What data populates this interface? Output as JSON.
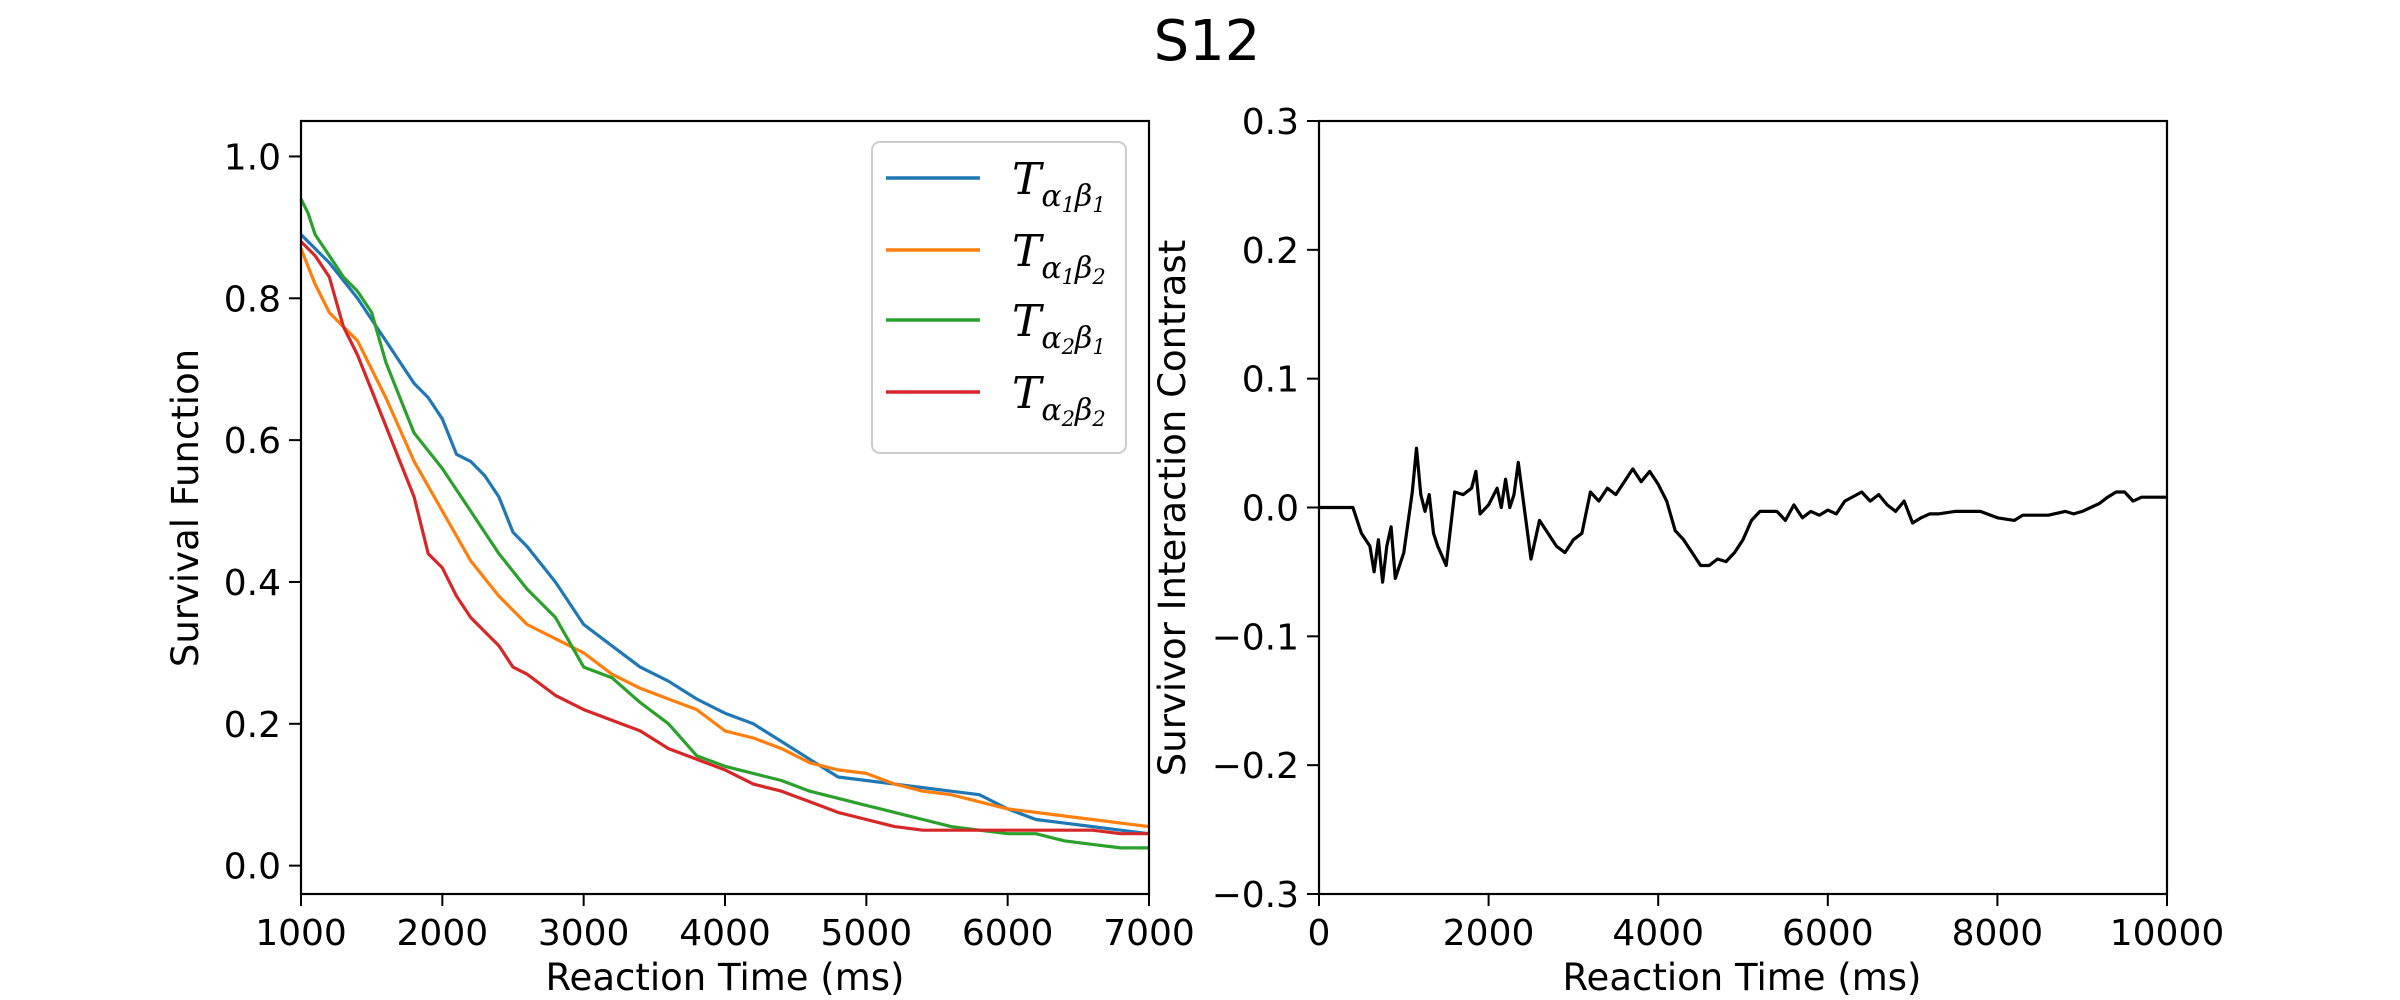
{
  "title": "S12",
  "colors": {
    "blue": "#1f77b4",
    "orange": "#ff7f0e",
    "green": "#2ca02c",
    "red": "#d62728",
    "black": "#000000"
  },
  "chart_data": [
    {
      "type": "line",
      "title": "",
      "xlabel": "Reaction Time (ms)",
      "ylabel": "Survival Function",
      "xlim": [
        1000,
        7000
      ],
      "ylim": [
        -0.04,
        1.05
      ],
      "xticks": [
        1000,
        2000,
        3000,
        4000,
        5000,
        6000,
        7000
      ],
      "xtick_labels": [
        "1000",
        "2000",
        "3000",
        "4000",
        "5000",
        "6000",
        "7000"
      ],
      "yticks": [
        0.0,
        0.2,
        0.4,
        0.6,
        0.8,
        1.0
      ],
      "ytick_labels": [
        "0.0",
        "0.2",
        "0.4",
        "0.6",
        "0.8",
        "1.0"
      ],
      "grid": false,
      "legend_position": "top-right",
      "series": [
        {
          "name": "T_a1b1",
          "label_T": "T",
          "label_sub": [
            "α",
            "1",
            "β",
            "1"
          ],
          "color": "#1f77b4",
          "x": [
            1000,
            1200,
            1400,
            1600,
            1800,
            1900,
            2000,
            2100,
            2200,
            2300,
            2400,
            2500,
            2600,
            2800,
            3000,
            3200,
            3400,
            3600,
            3800,
            4000,
            4200,
            4400,
            4600,
            4800,
            5000,
            5200,
            5400,
            5600,
            5800,
            6000,
            6200,
            6400,
            6600,
            6800,
            7000
          ],
          "y": [
            0.89,
            0.85,
            0.8,
            0.74,
            0.68,
            0.66,
            0.63,
            0.58,
            0.57,
            0.55,
            0.52,
            0.47,
            0.45,
            0.4,
            0.34,
            0.31,
            0.28,
            0.26,
            0.235,
            0.215,
            0.2,
            0.175,
            0.15,
            0.125,
            0.12,
            0.115,
            0.11,
            0.105,
            0.1,
            0.08,
            0.065,
            0.06,
            0.055,
            0.05,
            0.045
          ]
        },
        {
          "name": "T_a1b2",
          "label_T": "T",
          "label_sub": [
            "α",
            "1",
            "β",
            "2"
          ],
          "color": "#ff7f0e",
          "x": [
            1000,
            1100,
            1200,
            1300,
            1400,
            1600,
            1800,
            2000,
            2200,
            2400,
            2600,
            2800,
            3000,
            3200,
            3400,
            3600,
            3800,
            4000,
            4200,
            4400,
            4600,
            4800,
            5000,
            5200,
            5400,
            5600,
            5800,
            6000,
            6200,
            6400,
            6600,
            6800,
            7000
          ],
          "y": [
            0.87,
            0.82,
            0.78,
            0.76,
            0.74,
            0.66,
            0.57,
            0.5,
            0.43,
            0.38,
            0.34,
            0.32,
            0.3,
            0.27,
            0.25,
            0.235,
            0.22,
            0.19,
            0.18,
            0.165,
            0.145,
            0.135,
            0.13,
            0.115,
            0.105,
            0.1,
            0.09,
            0.08,
            0.075,
            0.07,
            0.065,
            0.06,
            0.055
          ]
        },
        {
          "name": "T_a2b1",
          "label_T": "T",
          "label_sub": [
            "α",
            "2",
            "β",
            "1"
          ],
          "color": "#2ca02c",
          "x": [
            1000,
            1050,
            1100,
            1200,
            1300,
            1400,
            1500,
            1600,
            1700,
            1800,
            2000,
            2200,
            2400,
            2600,
            2800,
            3000,
            3200,
            3400,
            3600,
            3800,
            4000,
            4200,
            4400,
            4600,
            4800,
            5000,
            5200,
            5400,
            5600,
            5800,
            6000,
            6200,
            6400,
            6600,
            6800,
            7000
          ],
          "y": [
            0.94,
            0.92,
            0.89,
            0.86,
            0.83,
            0.81,
            0.78,
            0.71,
            0.66,
            0.61,
            0.56,
            0.5,
            0.44,
            0.39,
            0.35,
            0.28,
            0.265,
            0.23,
            0.2,
            0.155,
            0.14,
            0.13,
            0.12,
            0.105,
            0.095,
            0.085,
            0.075,
            0.065,
            0.055,
            0.05,
            0.045,
            0.045,
            0.035,
            0.03,
            0.025,
            0.025
          ]
        },
        {
          "name": "T_a2b2",
          "label_T": "T",
          "label_sub": [
            "α",
            "2",
            "β",
            "2"
          ],
          "color": "#d62728",
          "x": [
            1000,
            1100,
            1200,
            1300,
            1400,
            1500,
            1600,
            1700,
            1800,
            1900,
            2000,
            2100,
            2200,
            2300,
            2400,
            2500,
            2600,
            2800,
            3000,
            3200,
            3400,
            3600,
            3800,
            4000,
            4200,
            4400,
            4600,
            4800,
            5000,
            5200,
            5400,
            5600,
            5800,
            6000,
            6200,
            6400,
            6600,
            6800,
            7000
          ],
          "y": [
            0.88,
            0.86,
            0.83,
            0.76,
            0.72,
            0.67,
            0.62,
            0.57,
            0.52,
            0.44,
            0.42,
            0.38,
            0.35,
            0.33,
            0.31,
            0.28,
            0.27,
            0.24,
            0.22,
            0.205,
            0.19,
            0.165,
            0.15,
            0.135,
            0.115,
            0.105,
            0.09,
            0.075,
            0.065,
            0.055,
            0.05,
            0.05,
            0.05,
            0.05,
            0.05,
            0.05,
            0.05,
            0.045,
            0.045
          ]
        }
      ]
    },
    {
      "type": "line",
      "title": "",
      "xlabel": "Reaction Time (ms)",
      "ylabel": "Survivor Interaction Contrast",
      "xlim": [
        0,
        10000
      ],
      "ylim": [
        -0.3,
        0.3
      ],
      "xticks": [
        0,
        2000,
        4000,
        6000,
        8000,
        10000
      ],
      "xtick_labels": [
        "0",
        "2000",
        "4000",
        "6000",
        "8000",
        "10000"
      ],
      "yticks": [
        -0.3,
        -0.2,
        -0.1,
        0.0,
        0.1,
        0.2,
        0.3
      ],
      "ytick_labels": [
        "−0.3",
        "−0.2",
        "−0.1",
        "0.0",
        "0.1",
        "0.2",
        "0.3"
      ],
      "grid": false,
      "series": [
        {
          "name": "SIC",
          "color": "#000000",
          "x": [
            0,
            400,
            500,
            600,
            650,
            700,
            750,
            800,
            850,
            900,
            1000,
            1100,
            1150,
            1200,
            1250,
            1300,
            1350,
            1400,
            1500,
            1600,
            1700,
            1800,
            1850,
            1900,
            2000,
            2100,
            2150,
            2200,
            2250,
            2300,
            2350,
            2400,
            2500,
            2600,
            2650,
            2700,
            2800,
            2900,
            3000,
            3100,
            3200,
            3300,
            3400,
            3500,
            3600,
            3700,
            3800,
            3900,
            4000,
            4100,
            4200,
            4300,
            4400,
            4500,
            4600,
            4700,
            4800,
            4900,
            5000,
            5100,
            5200,
            5400,
            5500,
            5600,
            5700,
            5800,
            5900,
            6000,
            6100,
            6200,
            6400,
            6500,
            6600,
            6700,
            6800,
            6900,
            7000,
            7100,
            7200,
            7300,
            7500,
            7600,
            7800,
            8000,
            8200,
            8300,
            8400,
            8600,
            8800,
            8900,
            9000,
            9200,
            9300,
            9400,
            9500,
            9600,
            9700,
            10000
          ],
          "y": [
            0.0,
            0.0,
            -0.02,
            -0.03,
            -0.05,
            -0.025,
            -0.058,
            -0.03,
            -0.015,
            -0.055,
            -0.035,
            0.012,
            0.046,
            0.01,
            -0.003,
            0.01,
            -0.02,
            -0.03,
            -0.045,
            0.012,
            0.01,
            0.015,
            0.028,
            -0.005,
            0.002,
            0.015,
            0.0,
            0.022,
            0.0,
            0.01,
            0.035,
            0.01,
            -0.04,
            -0.01,
            -0.015,
            -0.02,
            -0.03,
            -0.035,
            -0.025,
            -0.02,
            0.012,
            0.005,
            0.015,
            0.01,
            0.02,
            0.03,
            0.02,
            0.028,
            0.018,
            0.005,
            -0.018,
            -0.025,
            -0.035,
            -0.045,
            -0.045,
            -0.04,
            -0.042,
            -0.035,
            -0.025,
            -0.01,
            -0.003,
            -0.003,
            -0.01,
            0.002,
            -0.008,
            -0.003,
            -0.006,
            -0.002,
            -0.005,
            0.005,
            0.012,
            0.005,
            0.01,
            0.002,
            -0.003,
            0.005,
            -0.012,
            -0.008,
            -0.005,
            -0.005,
            -0.003,
            -0.003,
            -0.003,
            -0.008,
            -0.01,
            -0.006,
            -0.006,
            -0.006,
            -0.003,
            -0.005,
            -0.003,
            0.003,
            0.008,
            0.012,
            0.012,
            0.005,
            0.008,
            0.008
          ]
        }
      ]
    }
  ]
}
